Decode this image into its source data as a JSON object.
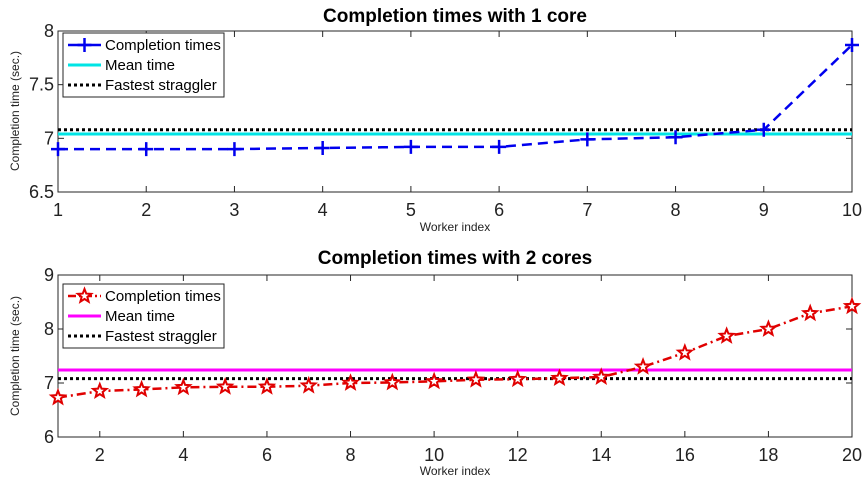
{
  "chart_data": [
    {
      "type": "line",
      "title": "Completion times with 1 core",
      "xlabel": "Worker index",
      "ylabel": "Completion time (sec.)",
      "xlim": [
        1,
        10
      ],
      "ylim": [
        6.5,
        8
      ],
      "xticks": [
        1,
        2,
        3,
        4,
        5,
        6,
        7,
        8,
        9,
        10
      ],
      "yticks": [
        6.5,
        7,
        7.5,
        8
      ],
      "grid": false,
      "legend_position": "top-left",
      "series": [
        {
          "name": "Completion times",
          "kind": "markers-dashed",
          "marker": "plus",
          "color": "#0000ee",
          "x": [
            1,
            2,
            3,
            4,
            5,
            6,
            7,
            8,
            9,
            10
          ],
          "y": [
            6.9,
            6.9,
            6.9,
            6.91,
            6.92,
            6.92,
            6.99,
            7.01,
            7.08,
            7.87
          ]
        },
        {
          "name": "Mean time",
          "kind": "hline",
          "color": "#00e5e5",
          "y": 7.04
        },
        {
          "name": "Fastest straggler",
          "kind": "hline-dotted",
          "color": "#000000",
          "y": 7.08
        }
      ]
    },
    {
      "type": "line",
      "title": "Completion times with 2 cores",
      "xlabel": "Worker index",
      "ylabel": "Completion time (sec.)",
      "xlim": [
        1,
        20
      ],
      "ylim": [
        6,
        9
      ],
      "xticks": [
        2,
        4,
        6,
        8,
        10,
        12,
        14,
        16,
        18,
        20
      ],
      "yticks": [
        6,
        7,
        8,
        9
      ],
      "grid": false,
      "legend_position": "top-left",
      "series": [
        {
          "name": "Completion times",
          "kind": "markers-dashdot",
          "marker": "star",
          "color": "#e00000",
          "x": [
            1,
            2,
            3,
            4,
            5,
            6,
            7,
            8,
            9,
            10,
            11,
            12,
            13,
            14,
            15,
            16,
            17,
            18,
            19,
            20
          ],
          "y": [
            6.73,
            6.85,
            6.88,
            6.92,
            6.93,
            6.93,
            6.95,
            7.0,
            7.01,
            7.03,
            7.06,
            7.07,
            7.09,
            7.11,
            7.3,
            7.56,
            7.87,
            8.0,
            8.29,
            8.42
          ]
        },
        {
          "name": "Mean time",
          "kind": "hline",
          "color": "#ff00ff",
          "y": 7.24
        },
        {
          "name": "Fastest straggler",
          "kind": "hline-dotted",
          "color": "#000000",
          "y": 7.08
        }
      ]
    }
  ]
}
